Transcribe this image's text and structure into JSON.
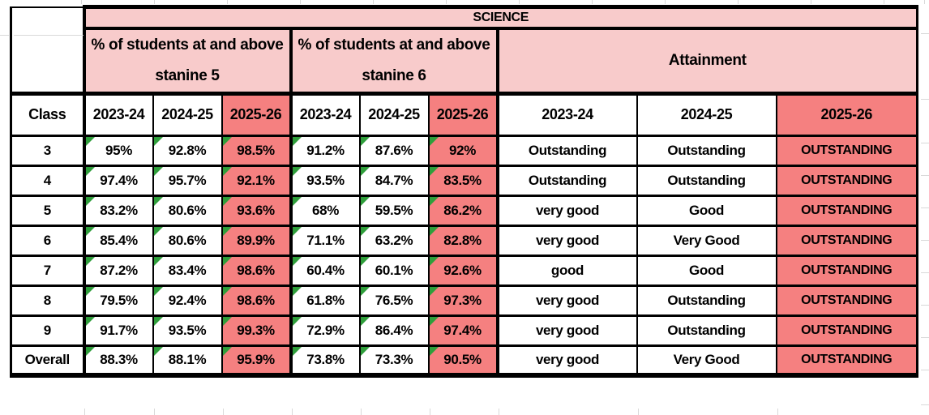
{
  "table": {
    "title": "SCIENCE",
    "corner_label": "Class",
    "groups": [
      {
        "line1": "% of students at and above",
        "line2": "stanine 5"
      },
      {
        "line1": "% of students at and above",
        "line2": "stanine 6"
      },
      {
        "label": "Attainment"
      }
    ],
    "year_columns": [
      "2023-24",
      "2024-25",
      "2025-26"
    ],
    "rows": [
      {
        "class": "3",
        "stanine5": [
          "95%",
          "92.8%",
          "98.5%"
        ],
        "stanine6": [
          "91.2%",
          "87.6%",
          "92%"
        ],
        "attainment": [
          "Outstanding",
          "Outstanding",
          "OUTSTANDING"
        ]
      },
      {
        "class": "4",
        "stanine5": [
          "97.4%",
          "95.7%",
          "92.1%"
        ],
        "stanine6": [
          "93.5%",
          "84.7%",
          "83.5%"
        ],
        "attainment": [
          "Outstanding",
          "Outstanding",
          "OUTSTANDING"
        ]
      },
      {
        "class": "5",
        "stanine5": [
          "83.2%",
          "80.6%",
          "93.6%"
        ],
        "stanine6": [
          "68%",
          "59.5%",
          "86.2%"
        ],
        "attainment": [
          "very good",
          "Good",
          "OUTSTANDING"
        ]
      },
      {
        "class": "6",
        "stanine5": [
          "85.4%",
          "80.6%",
          "89.9%"
        ],
        "stanine6": [
          "71.1%",
          "63.2%",
          "82.8%"
        ],
        "attainment": [
          "very good",
          "Very Good",
          "OUTSTANDING"
        ]
      },
      {
        "class": "7",
        "stanine5": [
          "87.2%",
          "83.4%",
          "98.6%"
        ],
        "stanine6": [
          "60.4%",
          "60.1%",
          "92.6%"
        ],
        "attainment": [
          "good",
          "Good",
          "OUTSTANDING"
        ]
      },
      {
        "class": "8",
        "stanine5": [
          "79.5%",
          "92.4%",
          "98.6%"
        ],
        "stanine6": [
          "61.8%",
          "76.5%",
          "97.3%"
        ],
        "attainment": [
          "very good",
          "Outstanding",
          "OUTSTANDING"
        ]
      },
      {
        "class": "9",
        "stanine5": [
          "91.7%",
          "93.5%",
          "99.3%"
        ],
        "stanine6": [
          "72.9%",
          "86.4%",
          "97.4%"
        ],
        "attainment": [
          "very good",
          "Outstanding",
          "OUTSTANDING"
        ]
      },
      {
        "class": "Overall",
        "stanine5": [
          "88.3%",
          "88.1%",
          "95.9%"
        ],
        "stanine6": [
          "73.8%",
          "73.3%",
          "90.5%"
        ],
        "attainment": [
          "very good",
          "Very Good",
          "OUTSTANDING"
        ]
      }
    ],
    "colors": {
      "header_pink": "#F8CBCB",
      "highlight_salmon": "#F58080",
      "error_indicator_green": "#2F9E3B",
      "border_black": "#000000",
      "gridline_gray": "#D9D9D9"
    }
  }
}
